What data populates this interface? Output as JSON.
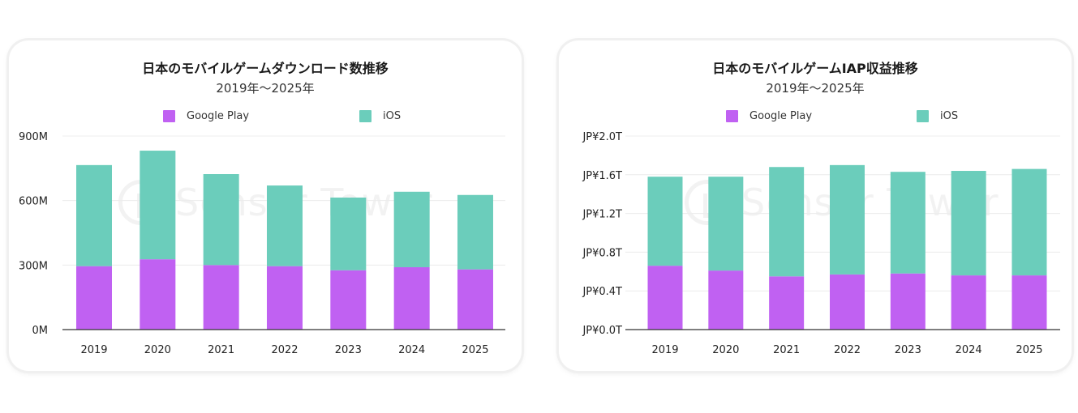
{
  "chart_data": [
    {
      "type": "bar",
      "stacked": true,
      "title": "日本のモバイルゲームダウンロード数推移",
      "subtitle": "2019年〜2025年",
      "categories": [
        "2019",
        "2020",
        "2021",
        "2022",
        "2023",
        "2024",
        "2025"
      ],
      "series": [
        {
          "name": "Google Play",
          "color": "#c061f2",
          "values": [
            295,
            327,
            300,
            295,
            276,
            290,
            280
          ]
        },
        {
          "name": "iOS",
          "color": "#6bcdbb",
          "values": [
            470,
            505,
            423,
            375,
            338,
            351,
            346
          ]
        }
      ],
      "yticks": [
        "0M",
        "300M",
        "600M",
        "900M"
      ],
      "ytick_values": [
        0,
        300,
        600,
        900
      ],
      "ylim": [
        0,
        900
      ],
      "legend": "top-center",
      "grid": true,
      "watermark": "Sensor Tower"
    },
    {
      "type": "bar",
      "stacked": true,
      "title": "日本のモバイルゲームIAP収益推移",
      "subtitle": "2019年〜2025年",
      "categories": [
        "2019",
        "2020",
        "2021",
        "2022",
        "2023",
        "2024",
        "2025"
      ],
      "series": [
        {
          "name": "Google Play",
          "color": "#c061f2",
          "values": [
            0.66,
            0.61,
            0.55,
            0.57,
            0.58,
            0.56,
            0.56
          ]
        },
        {
          "name": "iOS",
          "color": "#6bcdbb",
          "values": [
            0.92,
            0.97,
            1.13,
            1.13,
            1.05,
            1.08,
            1.1
          ]
        }
      ],
      "yticks": [
        "JP¥0.0T",
        "JP¥0.4T",
        "JP¥0.8T",
        "JP¥1.2T",
        "JP¥1.6T",
        "JP¥2.0T"
      ],
      "ytick_values": [
        0,
        0.4,
        0.8,
        1.2,
        1.6,
        2.0
      ],
      "ylim": [
        0,
        2.0
      ],
      "legend": "top-center",
      "grid": true,
      "watermark": "Sensor Tower"
    }
  ]
}
